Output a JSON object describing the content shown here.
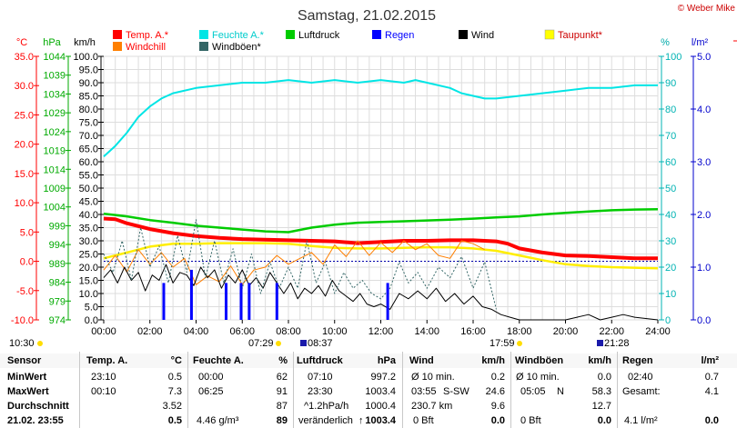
{
  "title": "Samstag, 21.02.2015",
  "copyright": "© Weber Mike",
  "units": {
    "temp": "°C",
    "hpa": "hPa",
    "kmh": "km/h",
    "pct": "%",
    "rain": "l/m²"
  },
  "legend": [
    {
      "name": "Temp. A.*",
      "color": "#ff0000"
    },
    {
      "name": "Feuchte A.*",
      "color": "#00e5e5"
    },
    {
      "name": "Luftdruck",
      "color": "#00cc00"
    },
    {
      "name": "Regen",
      "color": "#0000ff"
    },
    {
      "name": "Wind",
      "color": "#000000"
    },
    {
      "name": "Taupunkt*",
      "color": "#ffff00"
    },
    {
      "name": "Windchill",
      "color": "#ff7f00"
    },
    {
      "name": "Windböen*",
      "color": "#336666"
    }
  ],
  "sun": {
    "sunrise": "07:29",
    "moonset": "08:37",
    "sunset": "17:59",
    "moonrise": "21:28",
    "last": "10:30"
  },
  "chart_data": {
    "type": "line",
    "title": "Samstag, 21.02.2015",
    "x_ticks": [
      "00:00",
      "02:00",
      "04:00",
      "06:00",
      "08:00",
      "10:00",
      "12:00",
      "14:00",
      "16:00",
      "18:00",
      "20:00",
      "22:00",
      "24:00"
    ],
    "axes": {
      "temp": {
        "label": "°C",
        "range": [
          -10,
          35
        ],
        "ticks": [
          "35.0",
          "30.0",
          "25.0",
          "20.0",
          "15.0",
          "10.0",
          "5.0",
          "0.0",
          "-5.0",
          "-10.0"
        ]
      },
      "pressure": {
        "label": "hPa",
        "range": [
          974,
          1044
        ],
        "ticks": [
          "1044",
          "1039",
          "1034",
          "1029",
          "1024",
          "1019",
          "1014",
          "1009",
          "1004",
          "999",
          "994",
          "989",
          "984",
          "979",
          "974"
        ]
      },
      "wind": {
        "label": "km/h",
        "range": [
          0,
          100
        ],
        "ticks": [
          "100.0",
          "95.0",
          "90.0",
          "85.0",
          "80.0",
          "75.0",
          "70.0",
          "65.0",
          "60.0",
          "55.0",
          "50.0",
          "45.0",
          "40.0",
          "35.0",
          "30.0",
          "25.0",
          "20.0",
          "15.0",
          "10.0",
          "5.0",
          "0.0"
        ]
      },
      "humidity": {
        "label": "%",
        "range": [
          0,
          100
        ],
        "ticks": [
          "100",
          "90",
          "80",
          "70",
          "60",
          "50",
          "40",
          "30",
          "20",
          "10",
          "0"
        ]
      },
      "rain": {
        "label": "l/m²",
        "range": [
          0,
          5
        ],
        "ticks": [
          "5.0",
          "4.0",
          "3.0",
          "2.0",
          "1.0",
          "0.0"
        ]
      }
    },
    "series": [
      {
        "name": "Feuchte A.*",
        "axis": "humidity",
        "x": [
          0,
          0.5,
          1,
          1.5,
          2,
          2.5,
          3,
          4,
          5,
          6,
          7,
          8,
          9,
          10,
          11,
          12,
          13,
          13.5,
          14,
          15,
          15.5,
          16,
          16.5,
          17,
          18,
          19,
          20,
          21,
          22,
          23,
          24
        ],
        "y": [
          62,
          66,
          71,
          77,
          81,
          84,
          86,
          88,
          89,
          90,
          90,
          91,
          90,
          91,
          90,
          91,
          90,
          91,
          90,
          88,
          86,
          85,
          84,
          84,
          85,
          86,
          87,
          88,
          88,
          89,
          89
        ]
      },
      {
        "name": "Temp. A.*",
        "axis": "temp",
        "x": [
          0,
          0.5,
          1,
          2,
          3,
          4,
          5,
          6,
          7,
          8,
          9,
          10,
          11,
          12,
          13,
          14,
          15,
          16,
          17,
          17.5,
          18,
          19,
          20,
          21,
          22,
          23,
          24
        ],
        "y": [
          7.3,
          7.2,
          6.5,
          5.5,
          4.8,
          4.3,
          4.0,
          3.8,
          3.7,
          3.6,
          3.5,
          3.4,
          3.1,
          3.3,
          3.5,
          3.5,
          3.6,
          3.6,
          3.4,
          3.0,
          2.2,
          1.5,
          1.0,
          0.9,
          0.7,
          0.5,
          0.5
        ]
      },
      {
        "name": "Luftdruck",
        "axis": "pressure",
        "x": [
          0,
          1,
          2,
          3,
          4,
          5,
          6,
          7,
          8,
          9,
          10,
          11,
          12,
          13,
          14,
          15,
          16,
          17,
          18,
          19,
          20,
          21,
          22,
          23,
          24
        ],
        "y": [
          1002.2,
          1001.5,
          1000.5,
          999.8,
          999.0,
          998.5,
          998.0,
          997.5,
          997.3,
          998.5,
          999.3,
          999.8,
          1000.0,
          1000.2,
          1000.4,
          1000.6,
          1000.9,
          1001.2,
          1001.5,
          1002.0,
          1002.4,
          1002.8,
          1003.1,
          1003.3,
          1003.4
        ]
      },
      {
        "name": "Taupunkt*",
        "axis": "temp",
        "x": [
          0,
          1,
          2,
          3,
          4,
          5,
          6,
          7,
          8,
          9,
          10,
          11,
          12,
          13,
          14,
          15,
          16,
          17,
          18,
          19,
          20,
          21,
          22,
          23,
          24
        ],
        "y": [
          0.5,
          1.5,
          2.5,
          3.0,
          3.0,
          3.1,
          3.1,
          3.1,
          3.0,
          2.6,
          2.3,
          2.2,
          2.2,
          2.3,
          2.4,
          2.4,
          2.2,
          1.8,
          1.0,
          0.2,
          -0.5,
          -0.8,
          -1.0,
          -1.1,
          -1.2
        ]
      },
      {
        "name": "Windchill",
        "axis": "temp",
        "x": [
          0,
          0.5,
          1,
          1.5,
          2,
          2.5,
          3,
          3.5,
          4,
          4.5,
          5,
          5.5,
          6,
          6.5,
          7,
          7.5,
          8,
          8.5,
          9,
          9.5,
          10,
          10.5,
          11,
          11.5,
          12,
          12.5,
          13,
          13.5,
          14,
          14.5,
          15,
          15.5,
          16,
          16.5
        ],
        "y": [
          -1.5,
          1.0,
          -1.8,
          2.0,
          -0.5,
          1.5,
          -1.0,
          0.5,
          -4.0,
          -2.5,
          -3.5,
          -0.8,
          -4.0,
          -1.5,
          -1.0,
          1.0,
          -0.5,
          0.5,
          1.5,
          -0.5,
          2.8,
          0.8,
          3.5,
          1.0,
          3.2,
          1.5,
          3.5,
          2.0,
          3.0,
          1.0,
          0.5,
          3.5,
          3.0,
          2.0
        ]
      },
      {
        "name": "Wind",
        "axis": "wind",
        "x": [
          0,
          0.3,
          0.6,
          0.9,
          1.2,
          1.5,
          1.8,
          2.1,
          2.4,
          2.7,
          3,
          3.3,
          3.6,
          3.9,
          4.2,
          4.5,
          4.8,
          5.1,
          5.4,
          5.7,
          6,
          6.3,
          6.6,
          6.9,
          7.2,
          7.5,
          7.8,
          8.1,
          8.4,
          8.7,
          9,
          9.3,
          9.6,
          9.9,
          10.2,
          10.5,
          10.8,
          11.1,
          11.4,
          11.7,
          12,
          12.4,
          12.8,
          13.2,
          13.6,
          14,
          14.4,
          14.8,
          15.2,
          15.6,
          16,
          16.4,
          16.8,
          17.2,
          17.6,
          18,
          19,
          20,
          20.5,
          21,
          21.5,
          22,
          22.5,
          23,
          24
        ],
        "y": [
          16,
          19,
          14,
          20,
          15,
          18,
          11,
          17,
          15,
          21,
          14,
          18,
          17,
          13,
          20,
          16,
          19,
          12,
          17,
          14,
          19,
          13,
          16,
          12,
          18,
          14,
          10,
          14,
          8,
          12,
          10,
          13,
          9,
          15,
          11,
          9,
          7,
          10,
          6,
          5,
          6,
          4,
          10,
          8,
          11,
          8,
          12,
          7,
          10,
          6,
          9,
          5,
          4,
          2,
          1,
          0,
          0,
          0,
          1,
          2,
          0,
          1,
          2,
          1,
          0
        ]
      },
      {
        "name": "Windböen*",
        "axis": "wind",
        "x": [
          0,
          0.4,
          0.8,
          1.2,
          1.6,
          2,
          2.4,
          2.8,
          3.2,
          3.6,
          4,
          4.4,
          4.8,
          5.2,
          5.6,
          6,
          6.4,
          6.8,
          7.2,
          7.6,
          8,
          8.4,
          8.8,
          9.2,
          9.6,
          10,
          10.4,
          10.8,
          11.2,
          11.6,
          12,
          12.4,
          12.8,
          13.2,
          13.6,
          14,
          14.5,
          15,
          15.5,
          16,
          16.5,
          17
        ],
        "y": [
          25,
          18,
          30,
          15,
          35,
          20,
          28,
          14,
          32,
          18,
          38,
          16,
          30,
          14,
          27,
          12,
          25,
          10,
          22,
          12,
          20,
          12,
          30,
          14,
          22,
          10,
          18,
          12,
          15,
          10,
          8,
          12,
          22,
          14,
          18,
          12,
          20,
          16,
          24,
          12,
          22,
          4
        ]
      }
    ],
    "rain_bars": {
      "x": [
        2.6,
        3.8,
        5.3,
        5.95,
        6.3,
        7.5,
        12.3
      ],
      "y": [
        0.7,
        0.95,
        0.7,
        0.7,
        0.7,
        0.7,
        0.7
      ]
    }
  },
  "stats": {
    "headers": [
      "Sensor",
      "Temp. A.",
      "°C",
      "Feuchte A.",
      "%",
      "Luftdruck",
      "hPa",
      "Wind",
      "km/h",
      "Windböen",
      "km/h",
      "Regen",
      "l/m²"
    ],
    "min": {
      "label": "MinWert",
      "temp_time": "23:10",
      "temp": "0.5",
      "hum_time": "00:00",
      "hum": "62",
      "press_time": "07:10",
      "press": "997.2",
      "wind_lbl": "Ø 10 min.",
      "wind": "0.2",
      "gust_lbl": "Ø 10 min.",
      "gust": "0.0",
      "rain_time": "02:40",
      "rain": "0.7"
    },
    "max": {
      "label": "MaxWert",
      "temp_time": "00:10",
      "temp": "7.3",
      "hum_time": "06:25",
      "hum": "91",
      "press_time": "23:30",
      "press": "1003.4",
      "wind_time": "03:55",
      "wind_dir": "S-SW",
      "wind": "24.6",
      "gust_time": "05:05",
      "gust_dir": "N",
      "gust": "58.3",
      "rain_lbl": "Gesamt:",
      "rain": "4.1"
    },
    "avg": {
      "label": "Durchschnitt",
      "temp": "3.52",
      "hum": "87",
      "press_lbl": "^1.2hPa/h",
      "press": "1000.4",
      "wind_lbl": "230.7 km",
      "wind": "9.6",
      "gust": "12.7"
    },
    "cur": {
      "label": "21.02. 23:55",
      "temp": "0.5",
      "hum_extra": "4.46 g/m³",
      "hum": "89",
      "press_lbl": "veränderlich",
      "press": "1003.4",
      "wind_lbl": "0 Bft",
      "wind": "0.0",
      "gust_lbl": "0 Bft",
      "gust": "0.0",
      "rain_lbl": "4.1 l/m²",
      "rain": "0.0"
    }
  }
}
